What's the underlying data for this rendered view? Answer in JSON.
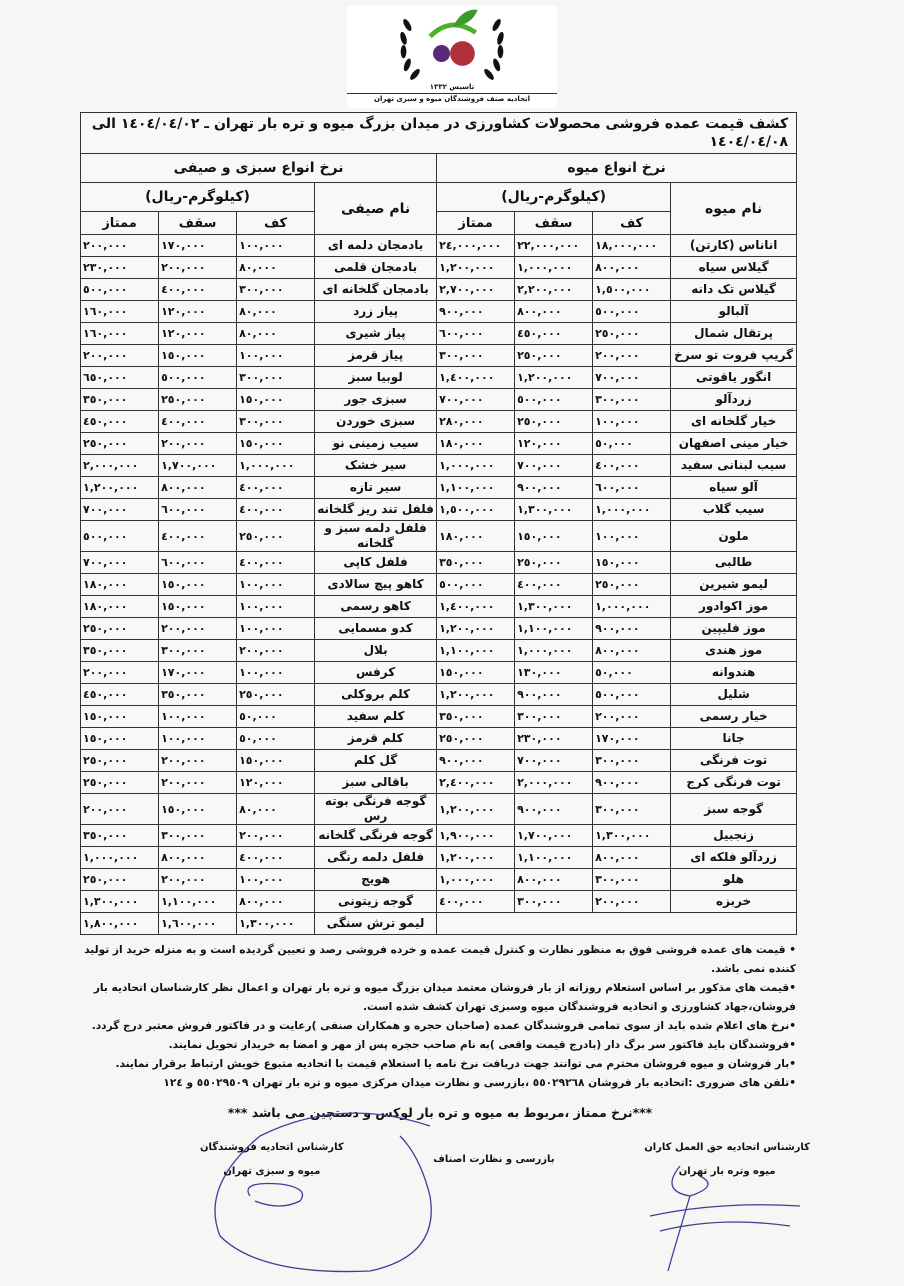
{
  "logo": {
    "established": "تاسیس ١٣٣٢",
    "organization": "اتحادیه صنف فروشندگان میوه و سبزی تهران"
  },
  "document": {
    "title": "کشف قیمت عمده فروشی محصولات کشاورزی در میدان بزرگ میوه و تره بار تهران ـ ١٤٠٤/٠٤/٠٢ الی ١٤٠٤/٠٤/٠٨"
  },
  "fruits": {
    "section_title": "نرخ انواع میوه",
    "unit": "(کیلوگرم-ریال)",
    "name_header": "نام میوه",
    "columns": [
      "کف",
      "سقف",
      "ممتاز"
    ],
    "rows": [
      {
        "name": "اناناس (کارتن)",
        "kaf": "١٨,٠٠٠,٠٠٠",
        "saghf": "٢٢,٠٠٠,٠٠٠",
        "momtaz": "٢٤,٠٠٠,٠٠٠"
      },
      {
        "name": "گیلاس سیاه",
        "kaf": "٨٠٠,٠٠٠",
        "saghf": "١,٠٠٠,٠٠٠",
        "momtaz": "١,٢٠٠,٠٠٠"
      },
      {
        "name": "گیلاس تک دانه",
        "kaf": "١,٥٠٠,٠٠٠",
        "saghf": "٢,٢٠٠,٠٠٠",
        "momtaz": "٢,٧٠٠,٠٠٠"
      },
      {
        "name": "آلبالو",
        "kaf": "٥٠٠,٠٠٠",
        "saghf": "٨٠٠,٠٠٠",
        "momtaz": "٩٠٠,٠٠٠"
      },
      {
        "name": "پرتقال شمال",
        "kaf": "٢٥٠,٠٠٠",
        "saghf": "٤٥٠,٠٠٠",
        "momtaz": "٦٠٠,٠٠٠"
      },
      {
        "name": "گریپ فروت تو سرخ",
        "kaf": "٢٠٠,٠٠٠",
        "saghf": "٢٥٠,٠٠٠",
        "momtaz": "٣٠٠,٠٠٠"
      },
      {
        "name": "انگور یاقوتی",
        "kaf": "٧٠٠,٠٠٠",
        "saghf": "١,٢٠٠,٠٠٠",
        "momtaz": "١,٤٠٠,٠٠٠"
      },
      {
        "name": "زردآلو",
        "kaf": "٣٠٠,٠٠٠",
        "saghf": "٥٠٠,٠٠٠",
        "momtaz": "٧٠٠,٠٠٠"
      },
      {
        "name": "خیار گلخانه ای",
        "kaf": "١٠٠,٠٠٠",
        "saghf": "٢٥٠,٠٠٠",
        "momtaz": "٢٨٠,٠٠٠"
      },
      {
        "name": "خیار مینی اصفهان",
        "kaf": "٥٠,٠٠٠",
        "saghf": "١٢٠,٠٠٠",
        "momtaz": "١٨٠,٠٠٠"
      },
      {
        "name": "سیب لبنانی سفید",
        "kaf": "٤٠٠,٠٠٠",
        "saghf": "٧٠٠,٠٠٠",
        "momtaz": "١,٠٠٠,٠٠٠"
      },
      {
        "name": "آلو سیاه",
        "kaf": "٦٠٠,٠٠٠",
        "saghf": "٩٠٠,٠٠٠",
        "momtaz": "١,١٠٠,٠٠٠"
      },
      {
        "name": "سیب گلاب",
        "kaf": "١,٠٠٠,٠٠٠",
        "saghf": "١,٣٠٠,٠٠٠",
        "momtaz": "١,٥٠٠,٠٠٠"
      },
      {
        "name": "ملون",
        "kaf": "١٠٠,٠٠٠",
        "saghf": "١٥٠,٠٠٠",
        "momtaz": "١٨٠,٠٠٠"
      },
      {
        "name": "طالبی",
        "kaf": "١٥٠,٠٠٠",
        "saghf": "٢٥٠,٠٠٠",
        "momtaz": "٣٥٠,٠٠٠"
      },
      {
        "name": "لیمو شیرین",
        "kaf": "٢٥٠,٠٠٠",
        "saghf": "٤٠٠,٠٠٠",
        "momtaz": "٥٠٠,٠٠٠"
      },
      {
        "name": "موز اکوادور",
        "kaf": "١,٠٠٠,٠٠٠",
        "saghf": "١,٣٠٠,٠٠٠",
        "momtaz": "١,٤٠٠,٠٠٠"
      },
      {
        "name": "موز فلیپین",
        "kaf": "٩٠٠,٠٠٠",
        "saghf": "١,١٠٠,٠٠٠",
        "momtaz": "١,٢٠٠,٠٠٠"
      },
      {
        "name": "موز هندی",
        "kaf": "٨٠٠,٠٠٠",
        "saghf": "١,٠٠٠,٠٠٠",
        "momtaz": "١,١٠٠,٠٠٠"
      },
      {
        "name": "هندوانه",
        "kaf": "٥٠,٠٠٠",
        "saghf": "١٣٠,٠٠٠",
        "momtaz": "١٥٠,٠٠٠"
      },
      {
        "name": "شلیل",
        "kaf": "٥٠٠,٠٠٠",
        "saghf": "٩٠٠,٠٠٠",
        "momtaz": "١,٢٠٠,٠٠٠"
      },
      {
        "name": "خیار رسمی",
        "kaf": "٢٠٠,٠٠٠",
        "saghf": "٣٠٠,٠٠٠",
        "momtaz": "٣٥٠,٠٠٠"
      },
      {
        "name": "جانا",
        "kaf": "١٧٠,٠٠٠",
        "saghf": "٢٣٠,٠٠٠",
        "momtaz": "٢٥٠,٠٠٠"
      },
      {
        "name": "توت فرنگی",
        "kaf": "٣٠٠,٠٠٠",
        "saghf": "٧٠٠,٠٠٠",
        "momtaz": "٩٠٠,٠٠٠"
      },
      {
        "name": "توت فرنگی کرج",
        "kaf": "٩٠٠,٠٠٠",
        "saghf": "٢,٠٠٠,٠٠٠",
        "momtaz": "٢,٤٠٠,٠٠٠"
      },
      {
        "name": "گوجه سبز",
        "kaf": "٣٠٠,٠٠٠",
        "saghf": "٩٠٠,٠٠٠",
        "momtaz": "١,٢٠٠,٠٠٠"
      },
      {
        "name": "زنجبیل",
        "kaf": "١,٣٠٠,٠٠٠",
        "saghf": "١,٧٠٠,٠٠٠",
        "momtaz": "١,٩٠٠,٠٠٠"
      },
      {
        "name": "زردآلو فلکه ای",
        "kaf": "٨٠٠,٠٠٠",
        "saghf": "١,١٠٠,٠٠٠",
        "momtaz": "١,٢٠٠,٠٠٠"
      },
      {
        "name": "هلو",
        "kaf": "٣٠٠,٠٠٠",
        "saghf": "٨٠٠,٠٠٠",
        "momtaz": "١,٠٠٠,٠٠٠"
      },
      {
        "name": "خربزه",
        "kaf": "٢٠٠,٠٠٠",
        "saghf": "٣٠٠,٠٠٠",
        "momtaz": "٤٠٠,٠٠٠"
      }
    ]
  },
  "vegetables": {
    "section_title": "نرخ انواع سبزی و صیفی",
    "unit": "(کیلوگرم-ریال)",
    "name_header": "نام صیفی",
    "columns": [
      "کف",
      "سقف",
      "ممتاز"
    ],
    "rows": [
      {
        "name": "بادمجان دلمه ای",
        "kaf": "١٠٠,٠٠٠",
        "saghf": "١٧٠,٠٠٠",
        "momtaz": "٢٠٠,٠٠٠"
      },
      {
        "name": "بادمجان قلمی",
        "kaf": "٨٠,٠٠٠",
        "saghf": "٢٠٠,٠٠٠",
        "momtaz": "٢٣٠,٠٠٠"
      },
      {
        "name": "بادمجان گلخانه ای",
        "kaf": "٣٠٠,٠٠٠",
        "saghf": "٤٠٠,٠٠٠",
        "momtaz": "٥٠٠,٠٠٠"
      },
      {
        "name": "پیاز زرد",
        "kaf": "٨٠,٠٠٠",
        "saghf": "١٢٠,٠٠٠",
        "momtaz": "١٦٠,٠٠٠"
      },
      {
        "name": "پیاز شیری",
        "kaf": "٨٠,٠٠٠",
        "saghf": "١٢٠,٠٠٠",
        "momtaz": "١٦٠,٠٠٠"
      },
      {
        "name": "پیاز قرمز",
        "kaf": "١٠٠,٠٠٠",
        "saghf": "١٥٠,٠٠٠",
        "momtaz": "٢٠٠,٠٠٠"
      },
      {
        "name": "لوبیا سبز",
        "kaf": "٣٠٠,٠٠٠",
        "saghf": "٥٠٠,٠٠٠",
        "momtaz": "٦٥٠,٠٠٠"
      },
      {
        "name": "سبزی جور",
        "kaf": "١٥٠,٠٠٠",
        "saghf": "٢٥٠,٠٠٠",
        "momtaz": "٣٥٠,٠٠٠"
      },
      {
        "name": "سبزی خوردن",
        "kaf": "٣٠٠,٠٠٠",
        "saghf": "٤٠٠,٠٠٠",
        "momtaz": "٤٥٠,٠٠٠"
      },
      {
        "name": "سیب زمینی نو",
        "kaf": "١٥٠,٠٠٠",
        "saghf": "٢٠٠,٠٠٠",
        "momtaz": "٢٥٠,٠٠٠"
      },
      {
        "name": "سیر خشک",
        "kaf": "١,٠٠٠,٠٠٠",
        "saghf": "١,٧٠٠,٠٠٠",
        "momtaz": "٢,٠٠٠,٠٠٠"
      },
      {
        "name": "سیر تازه",
        "kaf": "٤٠٠,٠٠٠",
        "saghf": "٨٠٠,٠٠٠",
        "momtaz": "١,٢٠٠,٠٠٠"
      },
      {
        "name": "فلفل تند ریز گلخانه",
        "kaf": "٤٠٠,٠٠٠",
        "saghf": "٦٠٠,٠٠٠",
        "momtaz": "٧٠٠,٠٠٠"
      },
      {
        "name": "فلفل دلمه سبز و گلخانه",
        "kaf": "٢٥٠,٠٠٠",
        "saghf": "٤٠٠,٠٠٠",
        "momtaz": "٥٠٠,٠٠٠"
      },
      {
        "name": "فلفل کاپی",
        "kaf": "٤٠٠,٠٠٠",
        "saghf": "٦٠٠,٠٠٠",
        "momtaz": "٧٠٠,٠٠٠"
      },
      {
        "name": "کاهو پیچ سالادی",
        "kaf": "١٠٠,٠٠٠",
        "saghf": "١٥٠,٠٠٠",
        "momtaz": "١٨٠,٠٠٠"
      },
      {
        "name": "کاهو رسمی",
        "kaf": "١٠٠,٠٠٠",
        "saghf": "١٥٠,٠٠٠",
        "momtaz": "١٨٠,٠٠٠"
      },
      {
        "name": "کدو مسمایی",
        "kaf": "١٠٠,٠٠٠",
        "saghf": "٢٠٠,٠٠٠",
        "momtaz": "٢٥٠,٠٠٠"
      },
      {
        "name": "بلال",
        "kaf": "٢٠٠,٠٠٠",
        "saghf": "٣٠٠,٠٠٠",
        "momtaz": "٣٥٠,٠٠٠"
      },
      {
        "name": "کرفس",
        "kaf": "١٠٠,٠٠٠",
        "saghf": "١٧٠,٠٠٠",
        "momtaz": "٢٠٠,٠٠٠"
      },
      {
        "name": "کلم بروکلی",
        "kaf": "٢٥٠,٠٠٠",
        "saghf": "٣٥٠,٠٠٠",
        "momtaz": "٤٥٠,٠٠٠"
      },
      {
        "name": "کلم سفید",
        "kaf": "٥٠,٠٠٠",
        "saghf": "١٠٠,٠٠٠",
        "momtaz": "١٥٠,٠٠٠"
      },
      {
        "name": "کلم قرمز",
        "kaf": "٥٠,٠٠٠",
        "saghf": "١٠٠,٠٠٠",
        "momtaz": "١٥٠,٠٠٠"
      },
      {
        "name": "گل کلم",
        "kaf": "١٥٠,٠٠٠",
        "saghf": "٢٠٠,٠٠٠",
        "momtaz": "٢٥٠,٠٠٠"
      },
      {
        "name": "باقالی سبز",
        "kaf": "١٢٠,٠٠٠",
        "saghf": "٢٠٠,٠٠٠",
        "momtaz": "٢٥٠,٠٠٠"
      },
      {
        "name": "گوجه فرنگی بوته رس",
        "kaf": "٨٠,٠٠٠",
        "saghf": "١٥٠,٠٠٠",
        "momtaz": "٢٠٠,٠٠٠"
      },
      {
        "name": "گوجه فرنگی گلخانه",
        "kaf": "٢٠٠,٠٠٠",
        "saghf": "٣٠٠,٠٠٠",
        "momtaz": "٣٥٠,٠٠٠"
      },
      {
        "name": "فلفل دلمه رنگی",
        "kaf": "٤٠٠,٠٠٠",
        "saghf": "٨٠٠,٠٠٠",
        "momtaz": "١,٠٠٠,٠٠٠"
      },
      {
        "name": "هویج",
        "kaf": "١٠٠,٠٠٠",
        "saghf": "٢٠٠,٠٠٠",
        "momtaz": "٢٥٠,٠٠٠"
      },
      {
        "name": "گوجه زیتونی",
        "kaf": "٨٠٠,٠٠٠",
        "saghf": "١,١٠٠,٠٠٠",
        "momtaz": "١,٣٠٠,٠٠٠"
      },
      {
        "name": "لیمو ترش سنگی",
        "kaf": "١,٣٠٠,٠٠٠",
        "saghf": "١,٦٠٠,٠٠٠",
        "momtaz": "١,٨٠٠,٠٠٠"
      }
    ]
  },
  "notes": [
    "• قیمت های عمده فروشی فوق به منظور نظارت و کنترل قیمت عمده و خرده فروشی رصد و تعیین گردیده است و به منزله خرید از تولید کننده نمی باشد.",
    "•قیمت های مذکور بر اساس استعلام روزانه از بار فروشان معتمد میدان بزرگ میوه و تره بار تهران و اعمال نظر کارشناسان اتحادیه بار فروشان،جهاد کشاورزی و اتحادیه فروشندگان میوه وسبزی تهران کشف شده است.",
    "•نرخ های اعلام شده باید از سوی تمامی فروشندگان عمده (صاحبان حجره و همکاران صنفی )رعایت و در فاکتور فروش معتبر درج گردد.",
    "•فروشندگان باید فاکتور سر برگ دار (بادرج قیمت واقعی )به نام صاحب حجره پس از مهر و امضا به خریدار تحویل نمایند.",
    "•بار فروشان و میوه فروشان محترم می توانند جهت دریافت نرخ نامه یا استعلام قیمت با اتحادیه متبوع خویش ارتباط برقرار نمایند.",
    "•تلفن های ضروری :اتحادیه بار فروشان ٥٥٠٢٩٢٦٨ ،بازرسی و نظارت میدان مرکزی میوه و تره بار تهران ٥٥٠٢٩٥٠٩ و ١٢٤"
  ],
  "premium_note": "***نرخ ممتاز ،مربوط به میوه و تره بار لوکس و دستچین می باشد ***",
  "signatures": {
    "commission_agents": {
      "line1": "کارشناس اتحادیه حق العمل کاران",
      "line2": "میوه وتره بار تهران"
    },
    "inspection": {
      "line1": "بازرسی و نظارت اصناف"
    },
    "sellers_union": {
      "line1": "کارشناس اتحادیه فروشندگان",
      "line2": "میوه و سبزی تهران"
    }
  },
  "colors": {
    "ink_signature": "#3b3f9a",
    "logo_green": "#4caf2e",
    "logo_red": "#b0303a"
  }
}
